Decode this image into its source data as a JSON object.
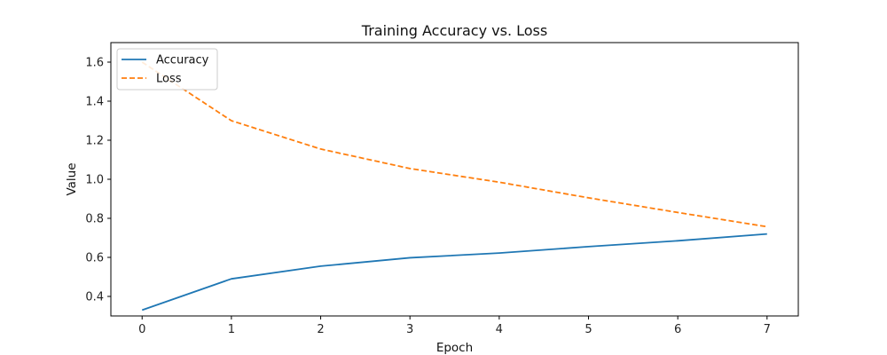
{
  "chart_data": {
    "type": "line",
    "title": "Training Accuracy vs. Loss",
    "xlabel": "Epoch",
    "ylabel": "Value",
    "x": [
      0,
      1,
      2,
      3,
      4,
      5,
      6,
      7
    ],
    "xlim": [
      -0.35,
      7.35
    ],
    "ylim": [
      0.3,
      1.7
    ],
    "xticks": [
      0,
      1,
      2,
      3,
      4,
      5,
      6,
      7
    ],
    "yticks": [
      0.4,
      0.6,
      0.8,
      1.0,
      1.2,
      1.4,
      1.6
    ],
    "xtick_labels": [
      "0",
      "1",
      "2",
      "3",
      "4",
      "5",
      "6",
      "7"
    ],
    "ytick_labels": [
      "0.4",
      "0.6",
      "0.8",
      "1.0",
      "1.2",
      "1.4",
      "1.6"
    ],
    "grid": false,
    "legend": "top-left",
    "series": [
      {
        "name": "Accuracy",
        "values": [
          0.33,
          0.49,
          0.555,
          0.598,
          0.622,
          0.655,
          0.685,
          0.72
        ],
        "color": "#1f77b4",
        "style": "solid"
      },
      {
        "name": "Loss",
        "values": [
          1.6,
          1.3,
          1.155,
          1.055,
          0.985,
          0.905,
          0.83,
          0.757
        ],
        "color": "#ff7f0e",
        "style": "dashed"
      }
    ]
  }
}
